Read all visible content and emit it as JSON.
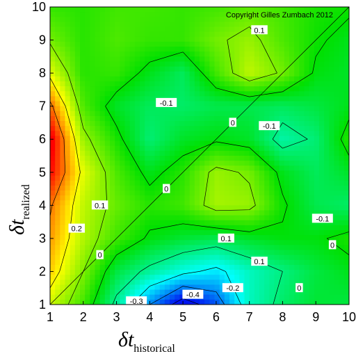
{
  "chart_data": {
    "type": "heatmap",
    "title": "",
    "copyright": "Copyright Gilles Zumbach 2012",
    "xlabel": {
      "symbol": "δt",
      "subscript": "historical"
    },
    "ylabel": {
      "symbol": "δt",
      "subscript": "realized"
    },
    "xlim": [
      1,
      10
    ],
    "ylim": [
      1,
      10
    ],
    "xticks": [
      "1",
      "2",
      "3",
      "4",
      "5",
      "6",
      "7",
      "8",
      "9",
      "10"
    ],
    "yticks": [
      "1",
      "2",
      "3",
      "4",
      "5",
      "6",
      "7",
      "8",
      "9",
      "10"
    ],
    "grid": false,
    "diagonal_line": true,
    "colormap": {
      "low": "#0000ff",
      "mid": "#00ff00",
      "high": "#ff0000",
      "stops": [
        {
          "value": -0.4,
          "color": "#0015f0"
        },
        {
          "value": -0.2,
          "color": "#00ffff"
        },
        {
          "value": 0.0,
          "color": "#00e000"
        },
        {
          "value": 0.2,
          "color": "#ffff00"
        },
        {
          "value": 0.4,
          "color": "#ff0000"
        }
      ]
    },
    "x": [
      1,
      2,
      3,
      4,
      5,
      6,
      7,
      8,
      9,
      10
    ],
    "y": [
      1,
      2,
      3,
      4,
      5,
      6,
      7,
      8,
      9,
      10
    ],
    "z": [
      [
        0.16,
        0.05,
        -0.12,
        -0.3,
        -0.45,
        -0.35,
        -0.15,
        -0.08,
        -0.04,
        -0.05
      ],
      [
        0.24,
        0.1,
        -0.05,
        -0.12,
        -0.18,
        -0.22,
        -0.15,
        -0.1,
        -0.05,
        -0.02
      ],
      [
        0.28,
        0.14,
        0.05,
        -0.01,
        -0.04,
        -0.06,
        -0.03,
        -0.01,
        -0.01,
        0.02
      ],
      [
        0.31,
        0.15,
        0.08,
        0.03,
        0.05,
        0.13,
        0.12,
        0.01,
        -0.06,
        -0.08
      ],
      [
        0.4,
        0.18,
        0.06,
        -0.02,
        0.03,
        0.12,
        0.09,
        -0.02,
        -0.07,
        -0.03
      ],
      [
        0.43,
        0.12,
        0.02,
        -0.09,
        -0.03,
        -0.01,
        -0.03,
        -0.13,
        -0.09,
        0.03
      ],
      [
        0.32,
        0.06,
        -0.03,
        -0.07,
        -0.08,
        -0.06,
        -0.06,
        -0.07,
        -0.05,
        -0.02
      ],
      [
        0.18,
        0.03,
        0.04,
        -0.02,
        -0.07,
        0.05,
        0.15,
        0.09,
        -0.01,
        -0.03
      ],
      [
        0.09,
        0.03,
        0.06,
        0.04,
        0.04,
        0.09,
        0.12,
        0.06,
        0.01,
        -0.02
      ],
      [
        0.04,
        0.03,
        0.05,
        0.05,
        0.04,
        0.05,
        0.07,
        0.05,
        0.02,
        0.01
      ]
    ],
    "contour_levels": [
      -0.4,
      -0.3,
      -0.2,
      -0.1,
      0,
      0.1,
      0.2,
      0.3
    ],
    "contour_labels": [
      {
        "text": "-0.4",
        "x": 5.3,
        "y": 1.3
      },
      {
        "text": "-0.3",
        "x": 3.6,
        "y": 1.1
      },
      {
        "text": "-0.2",
        "x": 6.5,
        "y": 1.5
      },
      {
        "text": "-0.1",
        "x": 4.5,
        "y": 7.1
      },
      {
        "text": "-0.1",
        "x": 7.6,
        "y": 6.4
      },
      {
        "text": "-0.1",
        "x": 9.2,
        "y": 3.6
      },
      {
        "text": "0.1",
        "x": 7.3,
        "y": 9.3
      },
      {
        "text": "0.1",
        "x": 6.3,
        "y": 3.0
      },
      {
        "text": "0.1",
        "x": 2.5,
        "y": 4.0
      },
      {
        "text": "0.1",
        "x": 7.3,
        "y": 2.3
      },
      {
        "text": "0.2",
        "x": 1.8,
        "y": 3.3
      },
      {
        "text": "0",
        "x": 6.5,
        "y": 6.5
      },
      {
        "text": "0",
        "x": 4.5,
        "y": 4.5
      },
      {
        "text": "0",
        "x": 2.5,
        "y": 2.5
      },
      {
        "text": "0",
        "x": 8.5,
        "y": 1.5
      },
      {
        "text": "0",
        "x": 9.5,
        "y": 2.8
      }
    ]
  }
}
